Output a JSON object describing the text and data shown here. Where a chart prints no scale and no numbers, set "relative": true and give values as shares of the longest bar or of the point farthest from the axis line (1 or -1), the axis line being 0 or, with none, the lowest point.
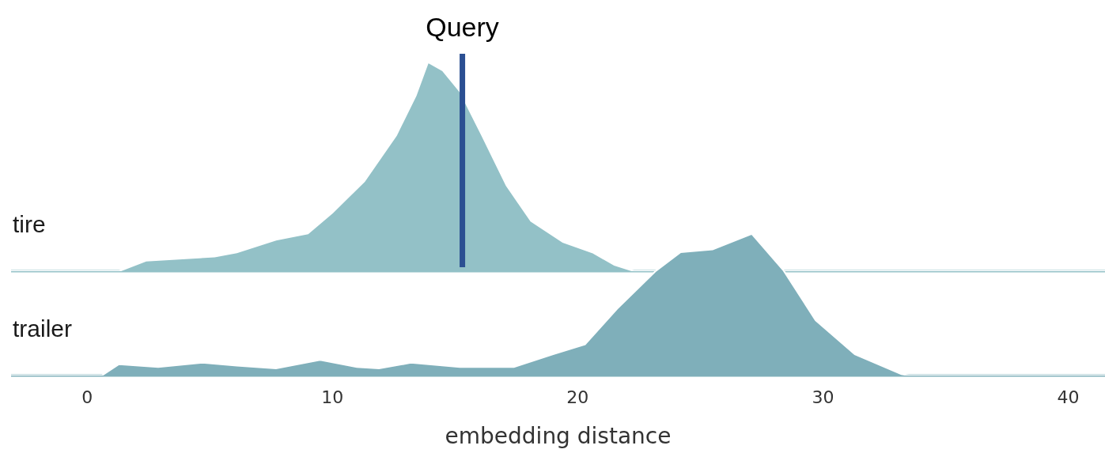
{
  "chart_data": [
    {
      "type": "area",
      "relative": true,
      "xlim": [
        -3.1,
        41.5
      ],
      "xticks": [
        0,
        10,
        20,
        30,
        40
      ],
      "tick_labels": false,
      "grid": false,
      "legend": false,
      "series": [
        {
          "name": "tire",
          "color": "#93c1c7",
          "x": [
            -3.1,
            1.3,
            2.4,
            5.2,
            6.1,
            7.7,
            9.0,
            10,
            11.3,
            12.6,
            13.4,
            13.9,
            14.5,
            15.2,
            16.1,
            17.1,
            18.1,
            19.4,
            20.6,
            21.5,
            22.3,
            41.5
          ],
          "values": [
            0,
            0,
            0.05,
            0.07,
            0.09,
            0.15,
            0.18,
            0.28,
            0.43,
            0.65,
            0.84,
            1.0,
            0.96,
            0.86,
            0.65,
            0.41,
            0.24,
            0.14,
            0.09,
            0.03,
            0,
            0
          ]
        }
      ],
      "ref_lines": [
        {
          "axis": "x",
          "value": 15.3,
          "label": "Query",
          "color": "#2b4f92"
        }
      ]
    },
    {
      "type": "area",
      "relative": true,
      "xlim": [
        -3.1,
        41.5
      ],
      "xticks": [
        0,
        10,
        20,
        30,
        40
      ],
      "tick_labels": "x",
      "grid": false,
      "legend": false,
      "xlabel": "embedding distance",
      "series": [
        {
          "name": "trailer",
          "color": "#7fafba",
          "x": [
            -3.1,
            0.6,
            1.3,
            2.9,
            4.7,
            6.1,
            7.7,
            9.5,
            11.0,
            11.9,
            13.2,
            15.2,
            17.4,
            19.0,
            20.3,
            21.6,
            23.2,
            24.2,
            25.5,
            27.1,
            28.4,
            29.7,
            31.3,
            33.2,
            33.5,
            41.5
          ],
          "values": [
            0,
            0,
            0.08,
            0.06,
            0.09,
            0.07,
            0.05,
            0.11,
            0.06,
            0.05,
            0.09,
            0.06,
            0.06,
            0.15,
            0.22,
            0.47,
            0.74,
            0.87,
            0.89,
            1.0,
            0.74,
            0.39,
            0.15,
            0.01,
            0,
            0
          ]
        }
      ]
    }
  ]
}
